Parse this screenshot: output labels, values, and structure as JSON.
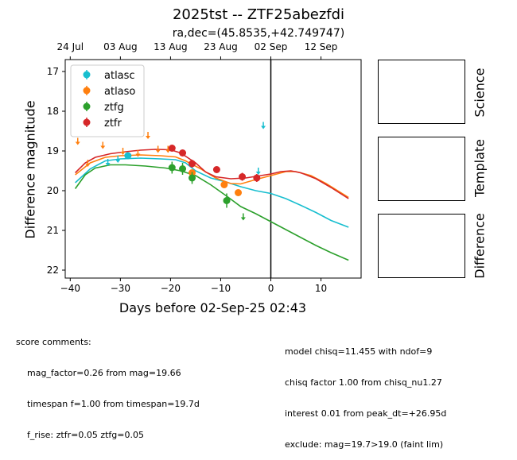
{
  "header": {
    "title": "2025tst -- ZTF25abezfdi",
    "subtitle": "ra,dec=(45.8535,+42.749747)"
  },
  "panels": {
    "science_label": "Science",
    "template_label": "Template",
    "difference_label": "Difference"
  },
  "comments": {
    "left": [
      "score comments:",
      "    mag_factor=0.26 from mag=19.66",
      "    timespan f=1.00 from timespan=19.7d",
      "    f_rise: ztfr=0.05 ztfg=0.05"
    ],
    "right": [
      "model chisq=11.455 with ndof=9",
      "chisq factor 1.00 from chisq_nu1.27",
      "interest 0.01 from peak_dt=+26.95d",
      "exclude: mag=19.7>19.0 (faint lim)"
    ]
  },
  "chart_data": {
    "type": "scatter",
    "xlabel": "Days before 02-Sep-25 02:43",
    "ylabel": "Difference magnitude",
    "xlim": [
      -41,
      18
    ],
    "ylim": [
      22.2,
      16.7
    ],
    "xticks": [
      -40,
      -30,
      -20,
      -10,
      0,
      10
    ],
    "yticks": [
      17,
      18,
      19,
      20,
      21,
      22
    ],
    "top_axis_ticks": [
      {
        "x": -40,
        "label": "24 Jul"
      },
      {
        "x": -30,
        "label": "03 Aug"
      },
      {
        "x": -20,
        "label": "13 Aug"
      },
      {
        "x": -10,
        "label": "23 Aug"
      },
      {
        "x": 0,
        "label": "02 Sep"
      },
      {
        "x": 10,
        "label": "12 Sep"
      }
    ],
    "vline_x": 0,
    "legend_position": "upper-left",
    "series": [
      {
        "name": "atlasc",
        "color": "#17becf",
        "points": [
          [
            -28.5,
            19.12,
            0.05
          ]
        ],
        "upper_limits": [
          [
            -32.5,
            19.28
          ],
          [
            -30.5,
            19.2
          ],
          [
            -1.5,
            18.35
          ],
          [
            -2.5,
            19.5
          ]
        ],
        "model": [
          [
            -39,
            19.8
          ],
          [
            -36,
            19.45
          ],
          [
            -33,
            19.25
          ],
          [
            -30,
            19.2
          ],
          [
            -26,
            19.18
          ],
          [
            -22,
            19.2
          ],
          [
            -19,
            19.22
          ],
          [
            -17,
            19.3
          ],
          [
            -15,
            19.5
          ],
          [
            -12,
            19.68
          ],
          [
            -9,
            19.78
          ],
          [
            -6,
            19.9
          ],
          [
            -3,
            20.0
          ],
          [
            0,
            20.07
          ],
          [
            3,
            20.2
          ],
          [
            6,
            20.37
          ],
          [
            9,
            20.55
          ],
          [
            12,
            20.75
          ],
          [
            15.5,
            20.92
          ]
        ]
      },
      {
        "name": "atlaso",
        "color": "#ff7f0e",
        "points": [
          [
            -15.7,
            19.55,
            0.08
          ],
          [
            -9.3,
            19.85,
            0.08
          ],
          [
            -6.5,
            20.05,
            0.08
          ]
        ],
        "upper_limits": [
          [
            -38.5,
            18.75
          ],
          [
            -36.5,
            19.3
          ],
          [
            -33.5,
            18.85
          ],
          [
            -29.5,
            19.0
          ],
          [
            -26.5,
            19.05
          ],
          [
            -24.5,
            18.6
          ],
          [
            -22.5,
            18.95
          ],
          [
            -20.5,
            18.95
          ]
        ],
        "model": [
          [
            -39,
            19.6
          ],
          [
            -36,
            19.3
          ],
          [
            -33,
            19.16
          ],
          [
            -30,
            19.12
          ],
          [
            -26,
            19.1
          ],
          [
            -22,
            19.12
          ],
          [
            -19,
            19.15
          ],
          [
            -17,
            19.25
          ],
          [
            -14,
            19.45
          ],
          [
            -11,
            19.68
          ],
          [
            -8,
            19.82
          ],
          [
            -6,
            19.83
          ],
          [
            -3,
            19.72
          ],
          [
            0,
            19.62
          ],
          [
            3,
            19.52
          ],
          [
            5,
            19.52
          ],
          [
            8,
            19.62
          ],
          [
            11,
            19.82
          ],
          [
            15.5,
            20.17
          ]
        ]
      },
      {
        "name": "ztfg",
        "color": "#2ca02c",
        "points": [
          [
            -19.7,
            19.42,
            0.15
          ],
          [
            -17.6,
            19.45,
            0.15
          ],
          [
            -15.7,
            19.68,
            0.15
          ],
          [
            -8.8,
            20.25,
            0.18
          ]
        ],
        "upper_limits": [
          [
            -5.5,
            20.65
          ]
        ],
        "model": [
          [
            -39,
            19.95
          ],
          [
            -37,
            19.6
          ],
          [
            -35,
            19.43
          ],
          [
            -32,
            19.35
          ],
          [
            -29,
            19.35
          ],
          [
            -25,
            19.38
          ],
          [
            -21,
            19.43
          ],
          [
            -18,
            19.5
          ],
          [
            -15,
            19.62
          ],
          [
            -12,
            19.85
          ],
          [
            -9,
            20.12
          ],
          [
            -6,
            20.4
          ],
          [
            -3,
            20.58
          ],
          [
            0,
            20.78
          ],
          [
            3,
            20.98
          ],
          [
            6,
            21.18
          ],
          [
            9,
            21.38
          ],
          [
            12,
            21.56
          ],
          [
            15.5,
            21.75
          ]
        ]
      },
      {
        "name": "ztfr",
        "color": "#d62728",
        "points": [
          [
            -19.7,
            18.93,
            0.08
          ],
          [
            -17.6,
            19.05,
            0.08
          ],
          [
            -15.7,
            19.32,
            0.1
          ],
          [
            -10.8,
            19.47,
            0.08
          ],
          [
            -5.7,
            19.65,
            0.1
          ],
          [
            -2.8,
            19.68,
            0.1
          ]
        ],
        "upper_limits": [],
        "model": [
          [
            -39,
            19.55
          ],
          [
            -37,
            19.3
          ],
          [
            -35,
            19.16
          ],
          [
            -32,
            19.07
          ],
          [
            -29,
            19.02
          ],
          [
            -26,
            18.98
          ],
          [
            -23,
            18.96
          ],
          [
            -20,
            18.97
          ],
          [
            -18,
            19.05
          ],
          [
            -15,
            19.3
          ],
          [
            -13,
            19.53
          ],
          [
            -11,
            19.65
          ],
          [
            -8,
            19.7
          ],
          [
            -5,
            19.68
          ],
          [
            -2,
            19.62
          ],
          [
            0,
            19.58
          ],
          [
            2,
            19.52
          ],
          [
            4,
            19.5
          ],
          [
            6,
            19.55
          ],
          [
            9,
            19.7
          ],
          [
            12,
            19.92
          ],
          [
            15.5,
            20.2
          ]
        ]
      }
    ]
  }
}
